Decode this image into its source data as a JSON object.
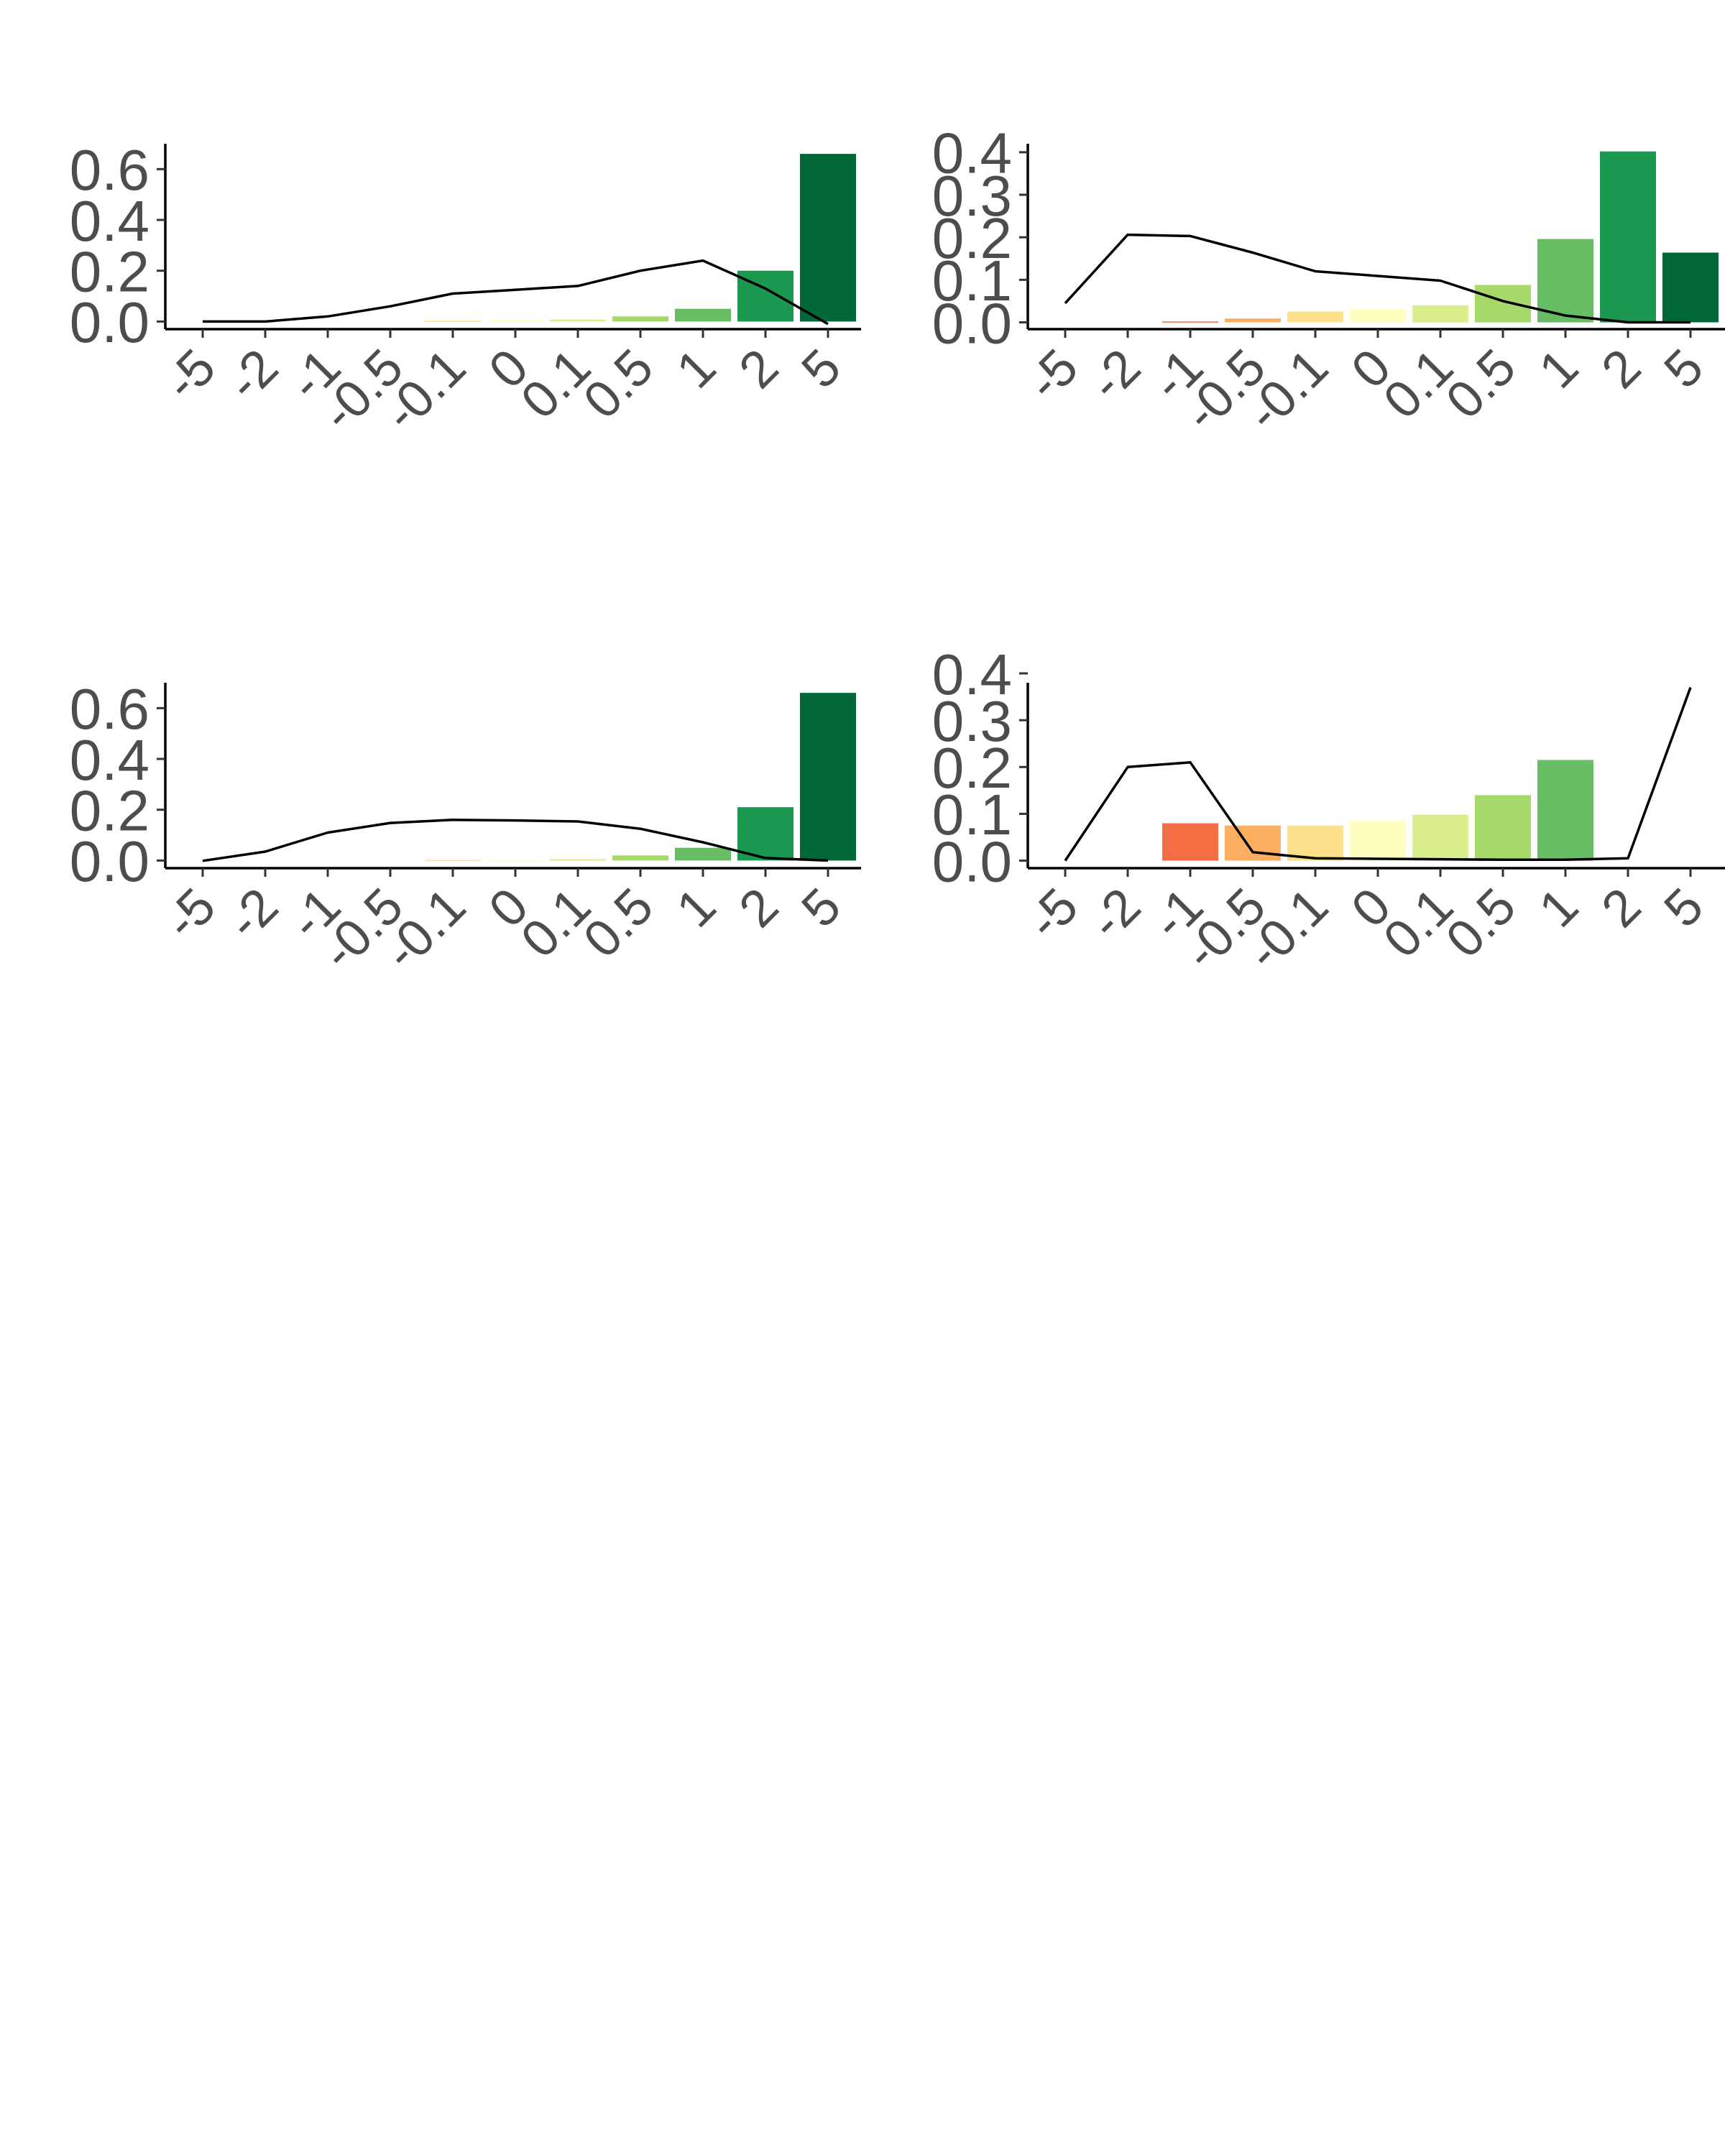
{
  "chart_data": [
    {
      "type": "bar",
      "categories": [
        "-5",
        "-2",
        "-1",
        "-0.5",
        "-0.1",
        "0",
        "0.1",
        "0.5",
        "1",
        "2",
        "5"
      ],
      "values": [
        0.0,
        0.0,
        0.0,
        0.0,
        0.003,
        0.004,
        0.008,
        0.02,
        0.05,
        0.2,
        0.66
      ],
      "bar_colors": [
        "#a50026",
        "#d73027",
        "#f46d43",
        "#fdae61",
        "#fee08b",
        "#ffffbf",
        "#d9ef8b",
        "#a6d96a",
        "#66bd63",
        "#1a9850",
        "#006837"
      ],
      "line": [
        0.0,
        0.0,
        0.02,
        0.06,
        0.11,
        0.125,
        0.14,
        0.2,
        0.24,
        0.13,
        -0.01
      ],
      "ylim": [
        -0.03,
        0.7
      ],
      "yticks": [
        "0.0",
        "0.2",
        "0.4",
        "0.6"
      ],
      "ytick_values": [
        0.0,
        0.2,
        0.4,
        0.6
      ]
    },
    {
      "type": "bar",
      "categories": [
        "-5",
        "-2",
        "-1",
        "-0.5",
        "-0.1",
        "0",
        "0.1",
        "0.5",
        "1",
        "2",
        "5"
      ],
      "values": [
        0.0,
        0.0,
        0.002,
        0.009,
        0.025,
        0.031,
        0.04,
        0.088,
        0.196,
        0.402,
        0.164
      ],
      "bar_colors": [
        "#a50026",
        "#d73027",
        "#f46d43",
        "#fdae61",
        "#fee08b",
        "#ffffbf",
        "#d9ef8b",
        "#a6d96a",
        "#66bd63",
        "#1a9850",
        "#006837"
      ],
      "line": [
        0.045,
        0.206,
        0.203,
        0.164,
        0.12,
        0.109,
        0.098,
        0.05,
        0.016,
        0.0,
        0.0
      ],
      "ylim": [
        -0.016,
        0.42
      ],
      "yticks": [
        "0.0",
        "0.1",
        "0.2",
        "0.3",
        "0.4"
      ],
      "ytick_values": [
        0.0,
        0.1,
        0.2,
        0.3,
        0.4
      ]
    },
    {
      "type": "bar",
      "categories": [
        "-5",
        "-2",
        "-1",
        "-0.5",
        "-0.1",
        "0",
        "0.1",
        "0.5",
        "1",
        "2",
        "5"
      ],
      "values": [
        0.0,
        0.0,
        0.0,
        0.0,
        0.002,
        0.002,
        0.006,
        0.02,
        0.05,
        0.21,
        0.66
      ],
      "bar_colors": [
        "#a50026",
        "#d73027",
        "#f46d43",
        "#fdae61",
        "#fee08b",
        "#ffffbf",
        "#d9ef8b",
        "#a6d96a",
        "#66bd63",
        "#1a9850",
        "#006837"
      ],
      "line": [
        -0.001,
        0.035,
        0.11,
        0.148,
        0.16,
        0.158,
        0.154,
        0.125,
        0.072,
        0.01,
        0.0
      ],
      "ylim": [
        -0.03,
        0.7
      ],
      "yticks": [
        "0.0",
        "0.2",
        "0.4",
        "0.6"
      ],
      "ytick_values": [
        0.0,
        0.2,
        0.4,
        0.6
      ]
    },
    {
      "type": "bar",
      "categories": [
        "-5",
        "-2",
        "-1",
        "-0.5",
        "-0.1",
        "0",
        "0.1",
        "0.5",
        "1",
        "2",
        "5"
      ],
      "values": [
        0.0,
        0.0,
        0.08,
        0.075,
        0.075,
        0.085,
        0.098,
        0.14,
        0.215,
        0.0,
        0.0
      ],
      "bar_colors": [
        "#a50026",
        "#d73027",
        "#f46d43",
        "#fdae61",
        "#fee08b",
        "#ffffbf",
        "#d9ef8b",
        "#a6d96a",
        "#66bd63",
        "#1a9850",
        "#006837"
      ],
      "line": [
        0.0,
        0.2,
        0.21,
        0.018,
        0.005,
        0.004,
        0.003,
        0.002,
        0.002,
        0.005,
        0.37
      ],
      "ylim": [
        -0.016,
        0.38
      ],
      "yticks": [
        "0.0",
        "0.1",
        "0.2",
        "0.3",
        "0.4"
      ],
      "ytick_values": [
        0.0,
        0.1,
        0.2,
        0.3,
        0.4
      ]
    }
  ]
}
